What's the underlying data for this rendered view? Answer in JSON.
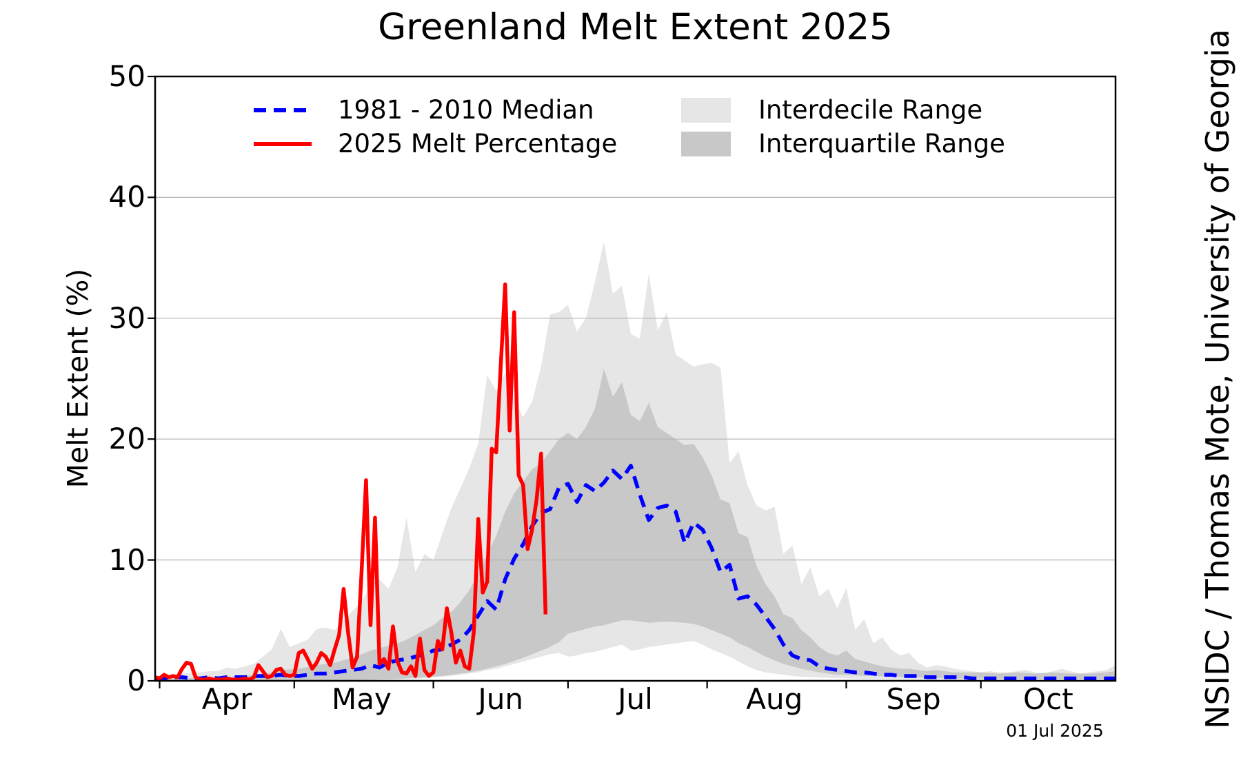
{
  "title": "Greenland Melt Extent 2025",
  "credit": "NSIDC / Thomas Mote, University of Georgia",
  "date_stamp": "01 Jul 2025",
  "legend": {
    "items": [
      {
        "label": "1981 - 2010 Median",
        "swatch": "dashed-line",
        "color": "#0000ff"
      },
      {
        "label": "2025 Melt Percentage",
        "swatch": "solid-line",
        "color": "#ff0000"
      },
      {
        "label": "Interdecile Range",
        "swatch": "box",
        "color": "#e6e6e6"
      },
      {
        "label": "Interquartile Range",
        "swatch": "box",
        "color": "#c8c8c8"
      }
    ]
  },
  "colors": {
    "line_2025": "#ff0000",
    "line_median": "#0000ff",
    "interdecile": "#e6e6e6",
    "interquartile": "#c8c8c8",
    "grid": "#b3b3b3",
    "spine": "#000000"
  },
  "chart_data": {
    "type": "line",
    "title": "Greenland Melt Extent 2025",
    "xlabel": "",
    "ylabel": "Melt Extent (%)",
    "x_unit": "days since 31 Mar",
    "x_range_days": 214,
    "ylim": [
      0,
      50
    ],
    "grid": "horizontal only",
    "legend_position": "top inside, two columns, no frame",
    "axes": {
      "y_label": "Melt Extent (%)",
      "y_ticks": [
        0,
        10,
        20,
        30,
        40,
        50
      ],
      "grid_y": [
        10,
        20,
        30,
        40
      ],
      "x_tick_labels": [
        "Apr",
        "May",
        "Jun",
        "Jul",
        "Aug",
        "Sep",
        "Oct"
      ],
      "x_tick_days": [
        1,
        31,
        62,
        92,
        123,
        154,
        184
      ],
      "x_label_days": [
        16,
        46,
        77,
        107,
        138,
        169,
        199
      ]
    },
    "bands": [
      {
        "name": "Interdecile Range",
        "color": "#e6e6e6",
        "step": 2,
        "upper": [
          0.4,
          0.4,
          0.5,
          0.6,
          0.7,
          0.7,
          0.8,
          0.8,
          1.1,
          1.0,
          1.2,
          1.4,
          2.0,
          2.6,
          4.3,
          2.8,
          3.1,
          3.4,
          4.3,
          4.4,
          4.2,
          5.0,
          5.8,
          6.5,
          8.0,
          8.4,
          7.6,
          9.4,
          13.5,
          9.0,
          10.5,
          10.0,
          12.2,
          14.3,
          15.9,
          17.6,
          19.6,
          25.3,
          24.0,
          25.5,
          23.3,
          21.8,
          23.1,
          26.0,
          30.3,
          30.5,
          31.1,
          28.9,
          30.0,
          33.0,
          36.3,
          32.0,
          32.7,
          28.7,
          28.3,
          33.7,
          29.0,
          30.5,
          27.0,
          26.5,
          26.0,
          26.2,
          26.3,
          25.9,
          18.0,
          19.0,
          16.2,
          14.5,
          14.1,
          14.4,
          10.5,
          11.2,
          8.0,
          9.4,
          7.0,
          7.6,
          6.0,
          7.7,
          4.2,
          5.1,
          3.1,
          3.6,
          2.6,
          2.1,
          2.3,
          1.5,
          1.1,
          1.3,
          1.2,
          1.0,
          0.9,
          0.8,
          0.7,
          0.8,
          0.7,
          0.7,
          0.8,
          0.9,
          0.7,
          0.6,
          0.8,
          1.0,
          0.8,
          0.6,
          0.7,
          0.8,
          0.9,
          1.3
        ],
        "lower": [
          0.05,
          0.05,
          0.05,
          0.05,
          0.05,
          0.05,
          0.05,
          0.05,
          0.05,
          0.05,
          0.05,
          0.05,
          0.05,
          0.05,
          0.05,
          0.05,
          0.05,
          0.05,
          0.05,
          0.05,
          0.05,
          0.05,
          0.05,
          0.05,
          0.05,
          0.1,
          0.1,
          0.1,
          0.15,
          0.15,
          0.2,
          0.3,
          0.35,
          0.4,
          0.5,
          0.6,
          0.7,
          0.9,
          1.0,
          1.2,
          1.4,
          1.6,
          1.8,
          2.0,
          2.2,
          2.3,
          2.0,
          2.1,
          2.3,
          2.4,
          2.6,
          2.8,
          3.0,
          2.5,
          2.6,
          2.8,
          2.9,
          3.0,
          3.1,
          3.2,
          3.3,
          3.0,
          2.6,
          2.3,
          2.0,
          1.6,
          1.2,
          0.9,
          0.7,
          0.6,
          0.5,
          0.4,
          0.35,
          0.3,
          0.28,
          0.25,
          0.22,
          0.2,
          0.18,
          0.15,
          0.15,
          0.15,
          0.12,
          0.1,
          0.1,
          0.1,
          0.1,
          0.1,
          0.1,
          0.1,
          0.08,
          0.08,
          0.08,
          0.08,
          0.08,
          0.08,
          0.08,
          0.08,
          0.08,
          0.08,
          0.08,
          0.08,
          0.08,
          0.08,
          0.08,
          0.08,
          0.08,
          0.1
        ]
      },
      {
        "name": "Interquartile Range",
        "color": "#c8c8c8",
        "step": 2,
        "upper": [
          0.15,
          0.15,
          0.2,
          0.2,
          0.25,
          0.25,
          0.3,
          0.3,
          0.35,
          0.35,
          0.4,
          0.5,
          0.6,
          0.7,
          0.9,
          0.95,
          1.0,
          1.15,
          1.3,
          1.4,
          1.5,
          1.7,
          1.9,
          2.2,
          2.5,
          2.7,
          2.9,
          3.1,
          3.4,
          3.8,
          4.2,
          4.6,
          5.2,
          5.7,
          6.5,
          7.5,
          8.8,
          10.5,
          12.0,
          14.0,
          15.5,
          16.5,
          17.5,
          18.0,
          19.0,
          20.0,
          20.5,
          20.0,
          21.0,
          22.5,
          25.8,
          23.5,
          24.7,
          22.0,
          21.5,
          23.0,
          21.0,
          20.5,
          20.0,
          19.5,
          19.6,
          18.5,
          17.0,
          15.0,
          14.7,
          12.2,
          11.9,
          9.5,
          8.0,
          7.0,
          5.5,
          5.2,
          4.2,
          3.6,
          2.8,
          2.3,
          2.1,
          2.5,
          1.8,
          1.6,
          1.4,
          1.2,
          1.1,
          1.0,
          1.0,
          0.9,
          0.8,
          0.9,
          0.8,
          0.7,
          0.7,
          0.7,
          0.7,
          0.65,
          0.6,
          0.65,
          0.7,
          0.65,
          0.6,
          0.65,
          0.7,
          0.65,
          0.6,
          0.6,
          0.6,
          0.65,
          0.7,
          0.8
        ],
        "lower": [
          0.02,
          0.02,
          0.02,
          0.02,
          0.02,
          0.02,
          0.02,
          0.02,
          0.02,
          0.02,
          0.02,
          0.02,
          0.02,
          0.02,
          0.02,
          0.02,
          0.02,
          0.02,
          0.02,
          0.02,
          0.02,
          0.03,
          0.05,
          0.08,
          0.1,
          0.12,
          0.15,
          0.18,
          0.2,
          0.25,
          0.3,
          0.35,
          0.4,
          0.5,
          0.6,
          0.7,
          0.85,
          1.0,
          1.2,
          1.4,
          1.65,
          1.9,
          2.2,
          2.5,
          2.8,
          3.2,
          3.9,
          4.1,
          4.3,
          4.5,
          4.6,
          4.8,
          5.0,
          5.0,
          4.9,
          4.8,
          4.85,
          4.9,
          4.85,
          4.8,
          4.7,
          4.5,
          4.2,
          3.9,
          3.6,
          3.1,
          2.8,
          2.4,
          2.0,
          1.7,
          1.4,
          1.2,
          1.0,
          0.85,
          0.7,
          0.6,
          0.5,
          0.5,
          0.45,
          0.4,
          0.4,
          0.38,
          0.35,
          0.32,
          0.3,
          0.28,
          0.25,
          0.25,
          0.22,
          0.2,
          0.2,
          0.2,
          0.2,
          0.18,
          0.17,
          0.15,
          0.15,
          0.15,
          0.15,
          0.15,
          0.15,
          0.15,
          0.15,
          0.15,
          0.15,
          0.15,
          0.18,
          0.2
        ]
      }
    ],
    "series": [
      {
        "name": "1981 - 2010 Median",
        "color": "#0000ff",
        "dash": true,
        "step": 2,
        "start_day": 0,
        "values": [
          0.2,
          0.2,
          0.3,
          0.3,
          0.2,
          0.2,
          0.3,
          0.2,
          0.3,
          0.3,
          0.3,
          0.4,
          0.4,
          0.4,
          0.5,
          0.4,
          0.4,
          0.5,
          0.6,
          0.6,
          0.7,
          0.8,
          0.9,
          1.0,
          1.3,
          1.1,
          1.5,
          1.7,
          1.8,
          2.0,
          2.2,
          2.5,
          2.6,
          3.0,
          3.4,
          4.2,
          5.4,
          6.6,
          5.9,
          8.4,
          10.1,
          11.3,
          12.8,
          13.9,
          14.2,
          16.0,
          16.3,
          14.8,
          16.2,
          15.7,
          16.4,
          17.4,
          16.7,
          17.8,
          15.4,
          13.3,
          14.3,
          14.5,
          14.0,
          11.4,
          13.1,
          12.5,
          11.0,
          9.0,
          9.6,
          6.8,
          7.0,
          6.3,
          5.3,
          4.3,
          3.0,
          2.1,
          1.8,
          1.7,
          1.2,
          1.0,
          0.9,
          0.8,
          0.7,
          0.7,
          0.6,
          0.5,
          0.5,
          0.4,
          0.4,
          0.4,
          0.3,
          0.3,
          0.3,
          0.3,
          0.3,
          0.2,
          0.2,
          0.2,
          0.2,
          0.2,
          0.2,
          0.2,
          0.2,
          0.2,
          0.2,
          0.2,
          0.2,
          0.2,
          0.2,
          0.2,
          0.2,
          0.2
        ]
      },
      {
        "name": "2025 Melt Percentage",
        "color": "#ff0000",
        "dash": false,
        "step": 1,
        "start_day": 0,
        "values": [
          0.3,
          0.2,
          0.5,
          0.3,
          0.4,
          0.3,
          1.0,
          1.5,
          1.4,
          0.3,
          0.1,
          0.1,
          0.2,
          0.1,
          0.1,
          0.1,
          0.2,
          0.1,
          0.1,
          0.1,
          0.2,
          0.1,
          0.3,
          1.3,
          0.8,
          0.3,
          0.4,
          0.9,
          1.0,
          0.5,
          0.4,
          0.5,
          2.3,
          2.5,
          1.8,
          1.0,
          1.5,
          2.3,
          2.0,
          1.3,
          2.6,
          3.8,
          7.6,
          4.0,
          1.1,
          2.0,
          9.0,
          16.6,
          4.6,
          13.5,
          1.4,
          1.8,
          1.0,
          4.5,
          1.6,
          0.7,
          0.6,
          1.2,
          0.4,
          3.5,
          0.9,
          0.4,
          0.7,
          3.3,
          2.6,
          6.0,
          4.0,
          1.5,
          2.5,
          1.2,
          1.0,
          4.0,
          13.4,
          7.3,
          8.2,
          19.2,
          18.9,
          26.0,
          32.8,
          20.7,
          30.5,
          17.0,
          16.2,
          10.9,
          12.5,
          15.0,
          18.8,
          5.5
        ]
      }
    ]
  }
}
